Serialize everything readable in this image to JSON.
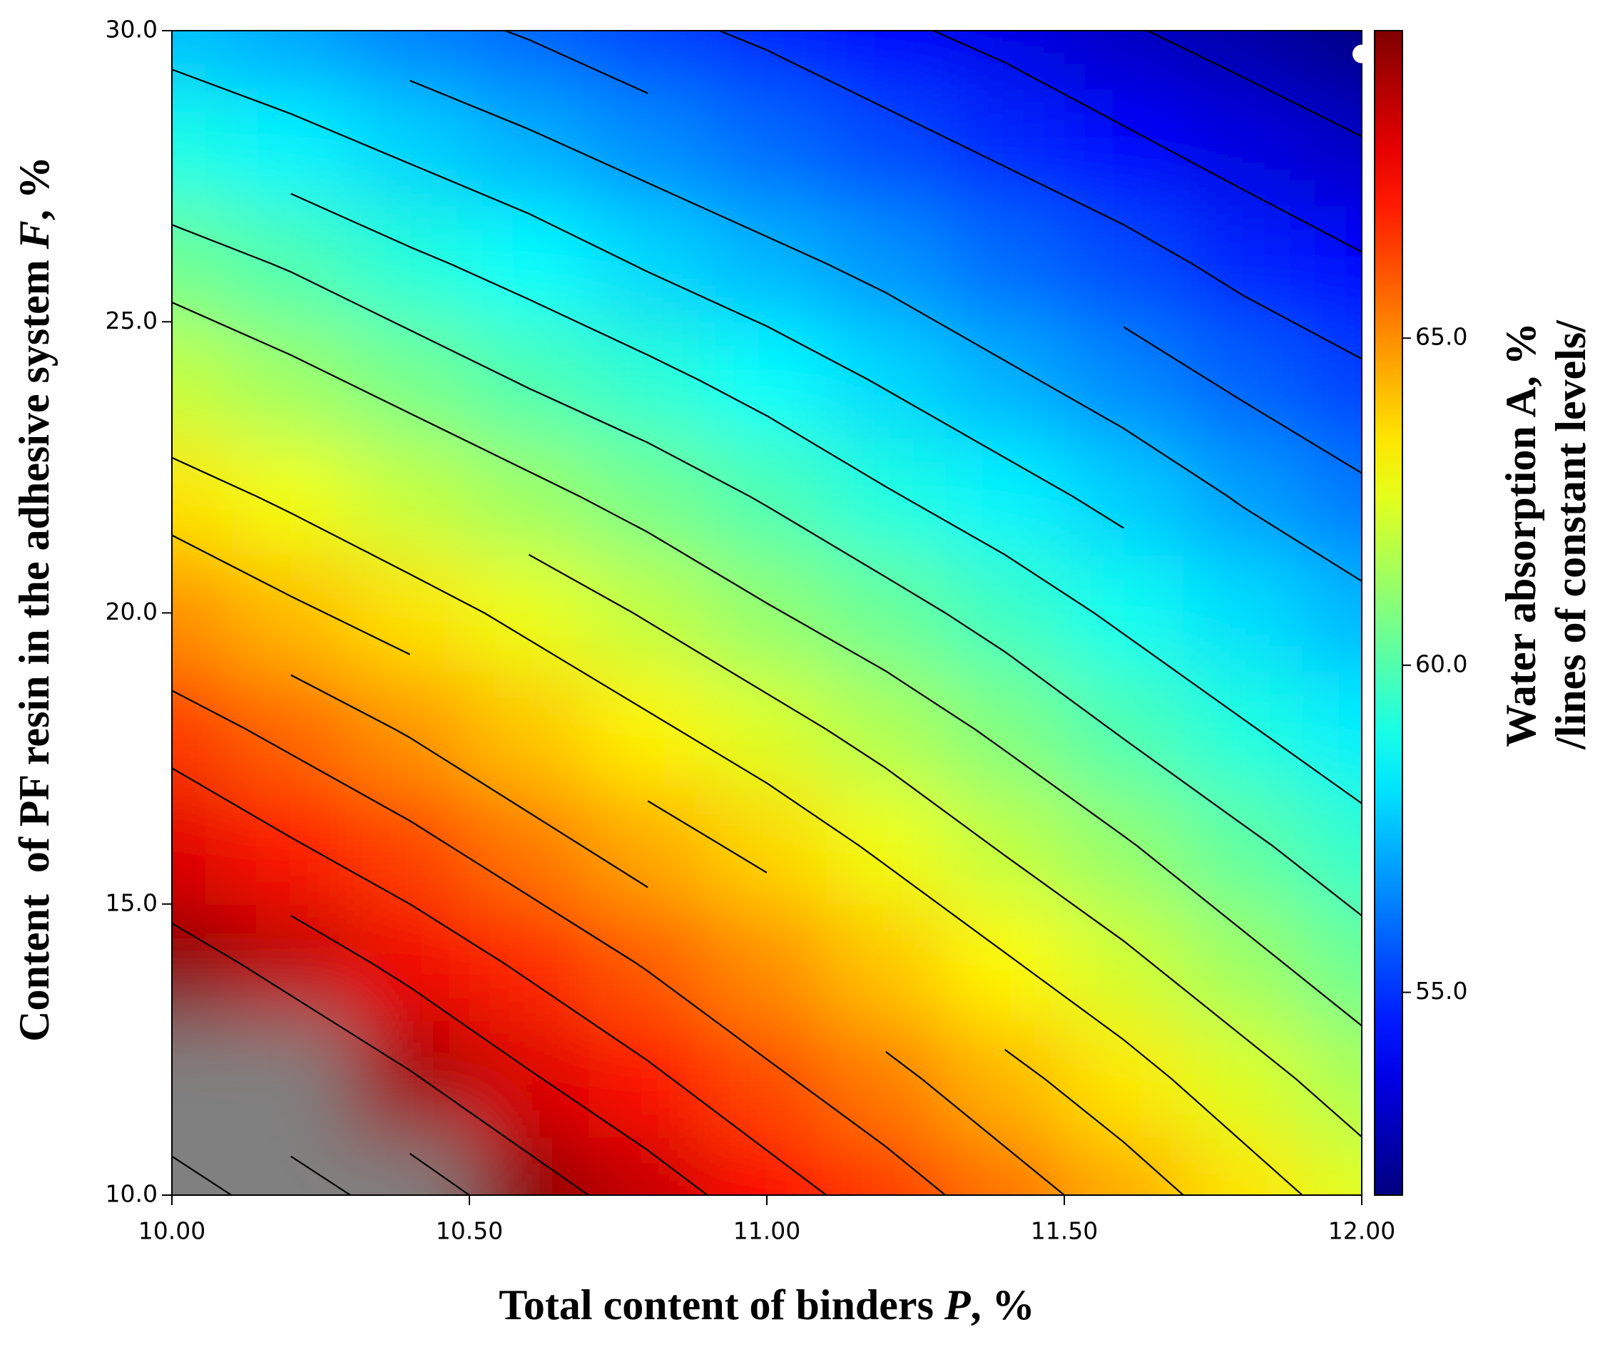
{
  "chart_data": {
    "type": "contour",
    "xlabel": [
      "Total content of binders ",
      "P",
      ", %"
    ],
    "ylabel": [
      "Content  of PF resin in the adhesive system ",
      "F",
      ", %"
    ],
    "colorbar_label": [
      "Water absorption A, %",
      "/lines of constant levels/"
    ],
    "x": [
      10.0,
      10.2,
      10.4,
      10.6,
      10.8,
      11.0,
      11.2,
      11.4,
      11.6,
      11.8,
      12.0
    ],
    "y": [
      10,
      12,
      14,
      16,
      18,
      20,
      22,
      24,
      26,
      28,
      30
    ],
    "z": [
      [
        72.5,
        71.5,
        70.5,
        69.5,
        68.5,
        67.5,
        66.5,
        65.5,
        64.5,
        63.5,
        62.5
      ],
      [
        71.0,
        70.0,
        69.1,
        68.1,
        67.2,
        66.2,
        65.3,
        64.3,
        63.4,
        62.4,
        61.5
      ],
      [
        69.5,
        68.6,
        67.7,
        66.8,
        65.9,
        65.0,
        64.0,
        63.1,
        62.2,
        61.3,
        60.4
      ],
      [
        68.0,
        67.1,
        66.3,
        65.4,
        64.5,
        63.7,
        62.8,
        61.9,
        61.1,
        60.2,
        59.4
      ],
      [
        66.5,
        65.7,
        64.9,
        64.0,
        63.2,
        62.4,
        61.6,
        60.8,
        59.9,
        59.1,
        58.3
      ],
      [
        65.0,
        64.2,
        63.5,
        62.7,
        61.9,
        61.1,
        60.4,
        59.6,
        58.8,
        58.0,
        57.3
      ],
      [
        63.5,
        62.8,
        62.0,
        61.3,
        60.6,
        59.9,
        59.1,
        58.4,
        57.7,
        56.9,
        56.2
      ],
      [
        62.0,
        61.3,
        60.6,
        59.9,
        59.3,
        58.6,
        57.9,
        57.2,
        56.5,
        55.8,
        55.2
      ],
      [
        60.5,
        59.9,
        59.2,
        58.6,
        57.9,
        57.3,
        56.7,
        56.0,
        55.4,
        54.7,
        54.1
      ],
      [
        59.0,
        58.4,
        57.8,
        57.2,
        56.6,
        56.0,
        55.4,
        54.8,
        54.2,
        53.6,
        53.1
      ],
      [
        57.5,
        57.0,
        56.4,
        55.9,
        55.3,
        54.8,
        54.2,
        53.7,
        53.1,
        52.6,
        52.0
      ]
    ],
    "contour_levels": [
      53,
      54,
      55,
      56,
      57,
      58,
      59,
      60,
      61,
      62,
      63,
      64,
      65,
      66,
      67,
      68,
      69,
      70,
      71,
      72
    ],
    "contour_color": "#000000",
    "colormap": "jet",
    "above_color": "#808080",
    "clim": [
      51.9,
      69.7
    ],
    "cticks": [
      {
        "value": 55,
        "label": "55.0"
      },
      {
        "value": 60,
        "label": "60.0"
      },
      {
        "value": 65,
        "label": "65.0"
      }
    ],
    "xlim": [
      10,
      12
    ],
    "ylim": [
      10,
      30
    ],
    "xticks": [
      {
        "value": 10,
        "label": "10.00"
      },
      {
        "value": 10.5,
        "label": "10.50"
      },
      {
        "value": 11,
        "label": "11.00"
      },
      {
        "value": 11.5,
        "label": "11.50"
      },
      {
        "value": 12,
        "label": "12.00"
      }
    ],
    "yticks": [
      {
        "value": 10,
        "label": "10.0"
      },
      {
        "value": 15,
        "label": "15.0"
      },
      {
        "value": 20,
        "label": "20.0"
      },
      {
        "value": 25,
        "label": "25.0"
      },
      {
        "value": 30,
        "label": "30.0"
      }
    ],
    "optimum_point": {
      "x": 12.0,
      "y": 29.6,
      "color": "#ffffff"
    }
  }
}
